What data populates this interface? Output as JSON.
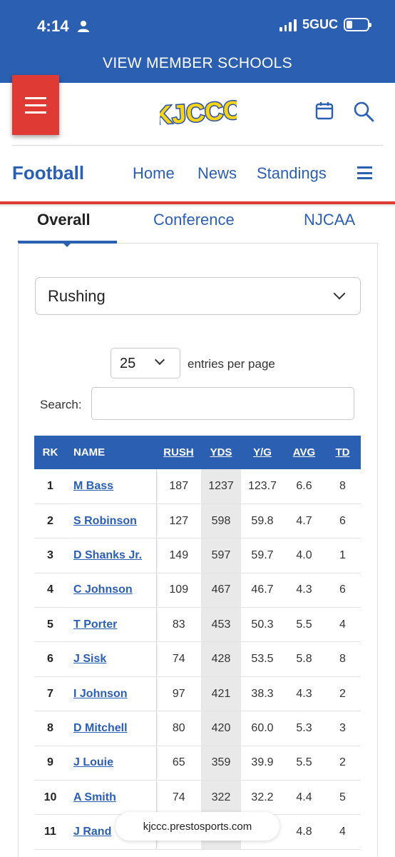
{
  "status_bar": {
    "time": "4:14",
    "network": "5GUC",
    "person_icon": "person-icon",
    "signal_icon": "signal-icon",
    "battery_icon": "battery-icon"
  },
  "top_bar": {
    "member_link": "VIEW MEMBER SCHOOLS"
  },
  "header": {
    "logo_text": "KJCCC",
    "menu_icon": "hamburger-icon",
    "calendar_icon": "calendar-icon",
    "search_icon": "search-icon"
  },
  "nav": {
    "sport": "Football",
    "links": [
      "Home",
      "News",
      "Standings"
    ],
    "menu_icon": "hamburger-icon"
  },
  "tabs": {
    "items": [
      "Overall",
      "Conference",
      "NJCAA"
    ],
    "active": "Overall"
  },
  "stats_category": {
    "selected": "Rushing"
  },
  "entries": {
    "value": "25",
    "label": "entries per page"
  },
  "search": {
    "label": "Search:",
    "value": ""
  },
  "table": {
    "columns": [
      "RK",
      "NAME",
      "RUSH",
      "YDS",
      "Y/G",
      "AVG",
      "TD"
    ],
    "rows": [
      [
        "1",
        "M Bass",
        "187",
        "1237",
        "123.7",
        "6.6",
        "8"
      ],
      [
        "2",
        "S Robinson",
        "127",
        "598",
        "59.8",
        "4.7",
        "6"
      ],
      [
        "3",
        "D Shanks Jr.",
        "149",
        "597",
        "59.7",
        "4.0",
        "1"
      ],
      [
        "4",
        "C Johnson",
        "109",
        "467",
        "46.7",
        "4.3",
        "6"
      ],
      [
        "5",
        "T Porter",
        "83",
        "453",
        "50.3",
        "5.5",
        "4"
      ],
      [
        "6",
        "J Sisk",
        "74",
        "428",
        "53.5",
        "5.8",
        "8"
      ],
      [
        "7",
        "I Johnson",
        "97",
        "421",
        "38.3",
        "4.3",
        "2"
      ],
      [
        "8",
        "D Mitchell",
        "80",
        "420",
        "60.0",
        "5.3",
        "3"
      ],
      [
        "9",
        "J Louie",
        "65",
        "359",
        "39.9",
        "5.5",
        "2"
      ],
      [
        "10",
        "A Smith",
        "74",
        "322",
        "32.2",
        "4.4",
        "5"
      ],
      [
        "11",
        "J Rand",
        "",
        "",
        "",
        "4.8",
        "4"
      ]
    ]
  },
  "browser": {
    "url": "kjccc.prestosports.com"
  },
  "colors": {
    "brand_blue": "#2b5fb1",
    "accent_red": "#e03a35",
    "logo_yellow": "#f5d415"
  }
}
